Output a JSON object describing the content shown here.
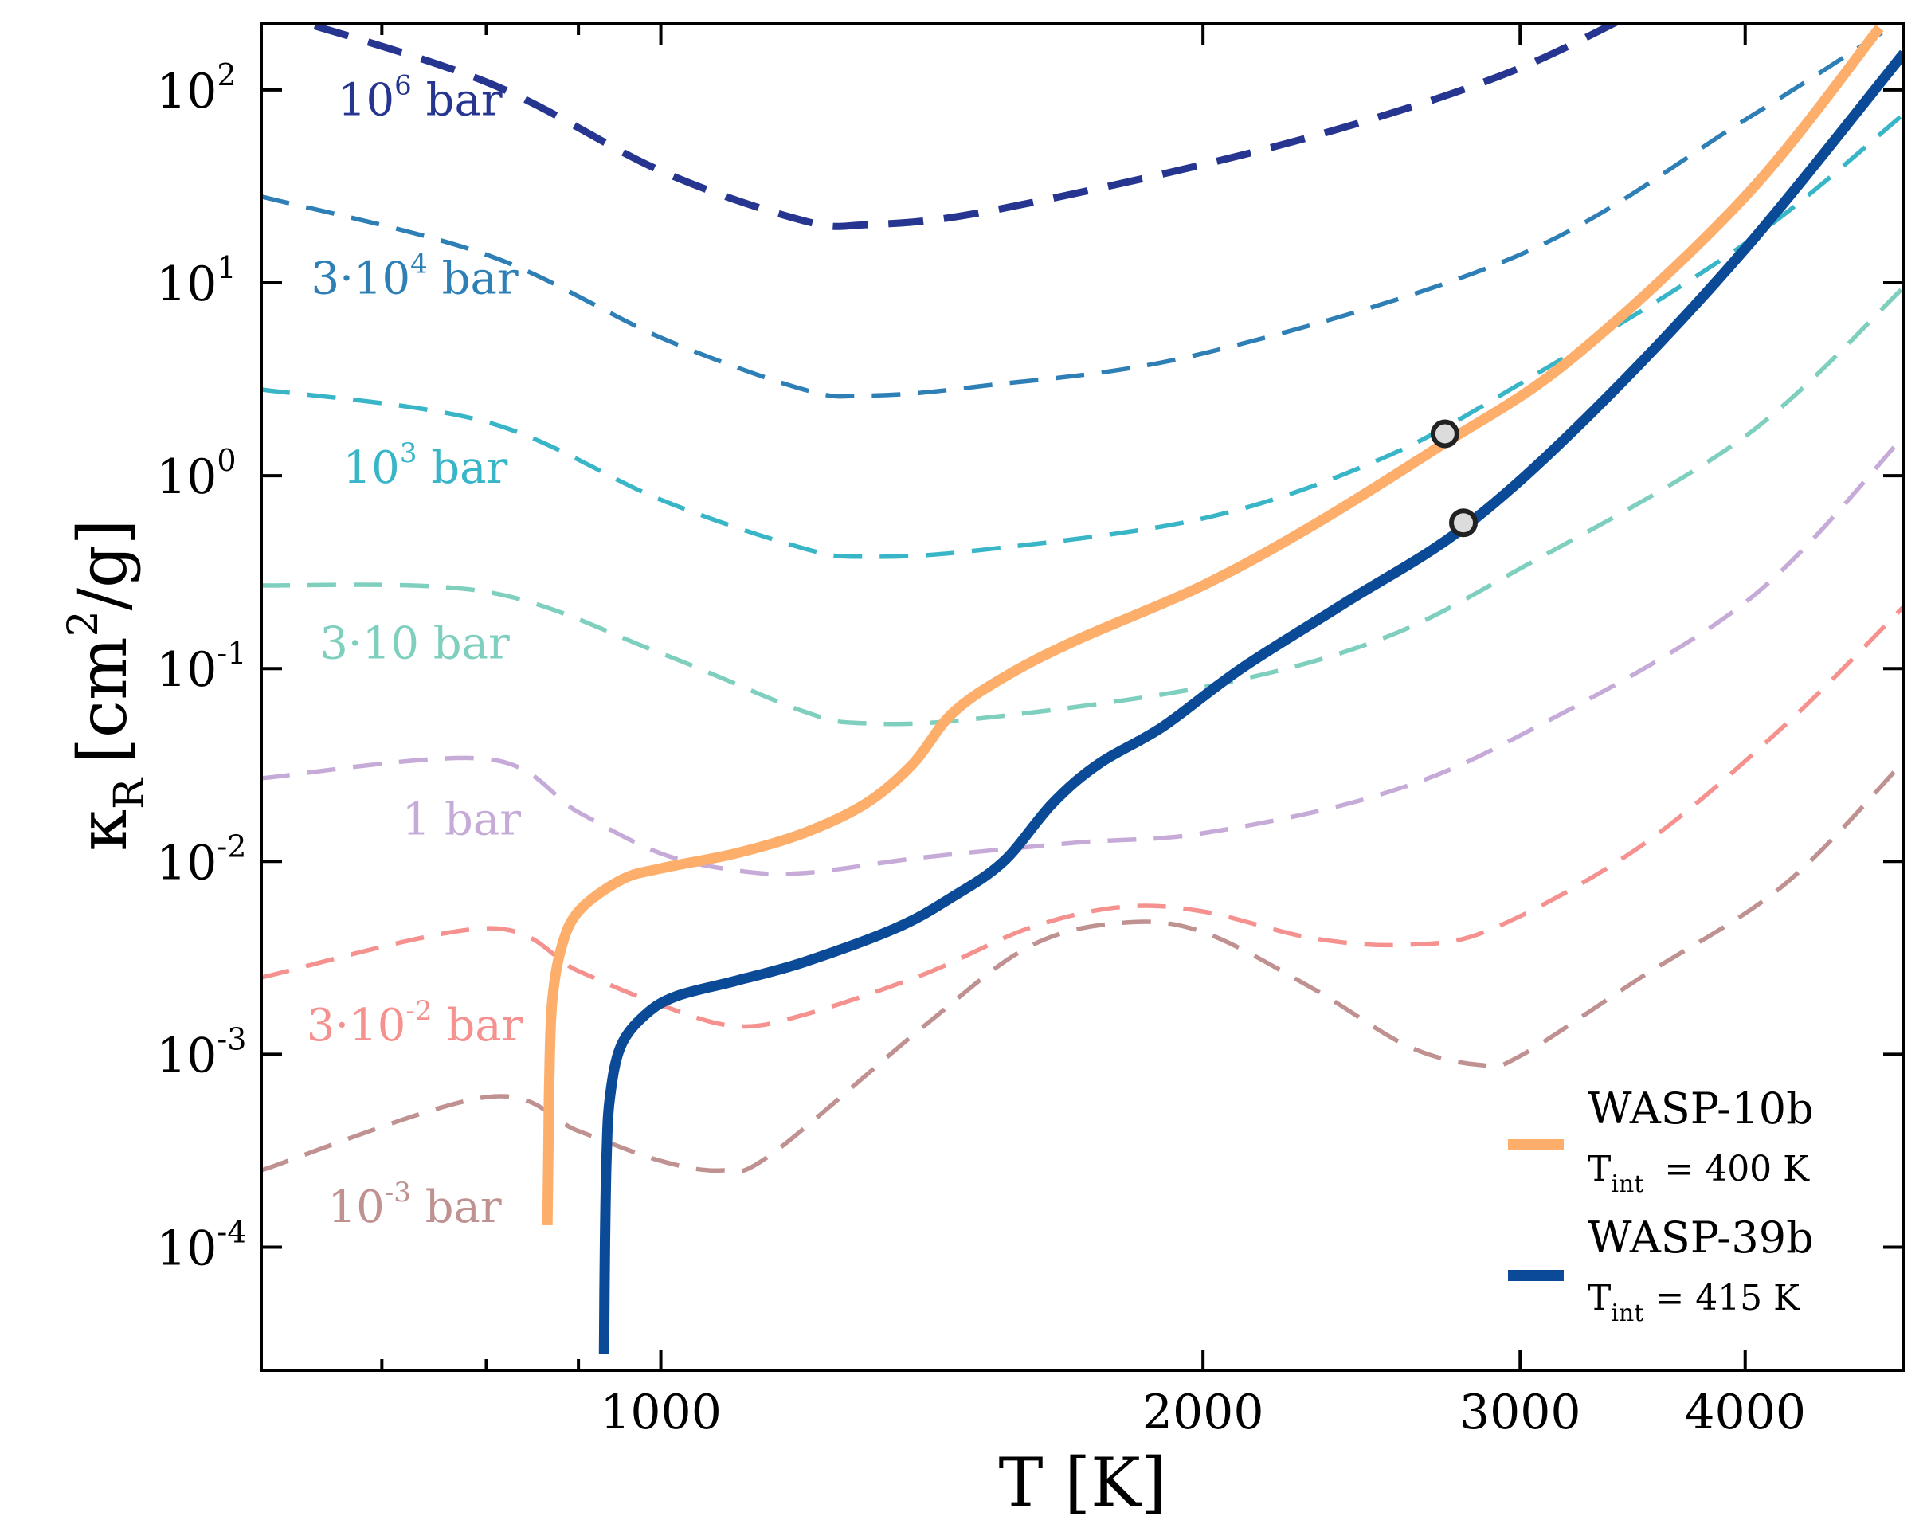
{
  "chart_data": {
    "type": "line",
    "xlabel": "T [K]",
    "ylabel": "κ_R [cm²/g]",
    "ylabel_parts": {
      "symbol": "κ",
      "subscript": "R",
      "unit_prefix": "[cm",
      "unit_exp": "2",
      "unit_suffix": "/g]"
    },
    "xscale": "log",
    "yscale": "log",
    "xlim": [
      600,
      4900
    ],
    "ylim": [
      2.3e-05,
      220
    ],
    "x_major_ticks": [
      1000,
      2000,
      3000,
      4000
    ],
    "x_minor_ticks": [
      700,
      800,
      900
    ],
    "x_tick_labels": [
      "1000",
      "2000",
      "3000",
      "4000"
    ],
    "y_ticks": [
      {
        "value": 0.0001,
        "base": "10",
        "exp": "-4"
      },
      {
        "value": 0.001,
        "base": "10",
        "exp": "-3"
      },
      {
        "value": 0.01,
        "base": "10",
        "exp": "-2"
      },
      {
        "value": 0.1,
        "base": "10",
        "exp": "-1"
      },
      {
        "value": 1,
        "base": "10",
        "exp": "0"
      },
      {
        "value": 10,
        "base": "10",
        "exp": "1"
      },
      {
        "value": 100,
        "base": "10",
        "exp": "2"
      }
    ],
    "isobars": [
      {
        "name": "10^6 bar",
        "color": "#26358f",
        "label": {
          "pre": "10",
          "exp": "6",
          "post": " bar",
          "T": 735,
          "k": 74
        },
        "points": [
          [
            600,
            260
          ],
          [
            800,
            110
          ],
          [
            1000,
            38
          ],
          [
            1200,
            21
          ],
          [
            1300,
            20
          ],
          [
            1500,
            23
          ],
          [
            2000,
            41
          ],
          [
            2500,
            72
          ],
          [
            3000,
            130
          ],
          [
            3500,
            260
          ]
        ]
      },
      {
        "name": "3·10^4 bar",
        "color": "#2e7fb6",
        "label": {
          "pre": "3·10",
          "exp": "4",
          "post": " bar",
          "T": 730,
          "k": 8.8
        },
        "points": [
          [
            600,
            28
          ],
          [
            800,
            14
          ],
          [
            1000,
            5.2
          ],
          [
            1200,
            2.8
          ],
          [
            1300,
            2.6
          ],
          [
            1500,
            2.9
          ],
          [
            2000,
            4.3
          ],
          [
            3000,
            14
          ],
          [
            4000,
            70
          ],
          [
            4900,
            235
          ]
        ]
      },
      {
        "name": "10^3 bar",
        "color": "#39b5c8",
        "label": {
          "pre": "10",
          "exp": "3",
          "post": " bar",
          "T": 740,
          "k": 0.92
        },
        "points": [
          [
            600,
            2.8
          ],
          [
            800,
            1.9
          ],
          [
            1000,
            0.75
          ],
          [
            1200,
            0.42
          ],
          [
            1300,
            0.38
          ],
          [
            1500,
            0.41
          ],
          [
            2000,
            0.6
          ],
          [
            2500,
            1.2
          ],
          [
            3000,
            3
          ],
          [
            4000,
            16
          ],
          [
            4900,
            75
          ]
        ]
      },
      {
        "name": "3·10 bar",
        "color": "#7fcfbf",
        "label": {
          "pre": "3·10",
          "exp": "",
          "post": " bar",
          "T": 730,
          "k": 0.113
        },
        "points": [
          [
            600,
            0.27
          ],
          [
            800,
            0.25
          ],
          [
            1000,
            0.12
          ],
          [
            1200,
            0.06
          ],
          [
            1300,
            0.052
          ],
          [
            1500,
            0.055
          ],
          [
            2000,
            0.08
          ],
          [
            2500,
            0.14
          ],
          [
            3000,
            0.33
          ],
          [
            4000,
            1.6
          ],
          [
            4900,
            9.5
          ]
        ]
      },
      {
        "name": "1 bar",
        "color": "#c6abd8",
        "label": {
          "pre": "1 bar",
          "exp": "",
          "post": "",
          "T": 775,
          "k": 0.0138
        },
        "points": [
          [
            600,
            0.027
          ],
          [
            800,
            0.034
          ],
          [
            900,
            0.018
          ],
          [
            1000,
            0.011
          ],
          [
            1100,
            0.009
          ],
          [
            1200,
            0.0087
          ],
          [
            1400,
            0.0105
          ],
          [
            1700,
            0.0125
          ],
          [
            2000,
            0.014
          ],
          [
            2500,
            0.022
          ],
          [
            3000,
            0.045
          ],
          [
            4000,
            0.22
          ],
          [
            4900,
            1.6
          ]
        ]
      },
      {
        "name": "3·10^-2 bar",
        "color": "#f5928f",
        "label": {
          "pre": "3·10",
          "exp": "-2",
          "post": " bar",
          "T": 730,
          "k": 0.00118
        },
        "points": [
          [
            600,
            0.0025
          ],
          [
            800,
            0.0045
          ],
          [
            900,
            0.0027
          ],
          [
            1000,
            0.0018
          ],
          [
            1100,
            0.0014
          ],
          [
            1200,
            0.0016
          ],
          [
            1400,
            0.0026
          ],
          [
            1600,
            0.0045
          ],
          [
            1800,
            0.0058
          ],
          [
            2000,
            0.0055
          ],
          [
            2300,
            0.004
          ],
          [
            2600,
            0.0037
          ],
          [
            2900,
            0.0045
          ],
          [
            3500,
            0.012
          ],
          [
            4200,
            0.05
          ],
          [
            4900,
            0.21
          ]
        ]
      },
      {
        "name": "10^-3 bar",
        "color": "#c09191",
        "label": {
          "pre": "10",
          "exp": "-3",
          "post": " bar",
          "T": 730,
          "k": 0.000135
        },
        "points": [
          [
            600,
            0.00025
          ],
          [
            800,
            0.0006
          ],
          [
            900,
            0.0004
          ],
          [
            1000,
            0.00028
          ],
          [
            1080,
            0.00025
          ],
          [
            1150,
            0.0003
          ],
          [
            1400,
            0.0014
          ],
          [
            1600,
            0.0036
          ],
          [
            1800,
            0.0048
          ],
          [
            2000,
            0.0043
          ],
          [
            2300,
            0.0022
          ],
          [
            2600,
            0.0011
          ],
          [
            2850,
            0.00088
          ],
          [
            3000,
            0.00098
          ],
          [
            3500,
            0.0025
          ],
          [
            4200,
            0.0075
          ],
          [
            4900,
            0.033
          ]
        ]
      }
    ],
    "profiles": [
      {
        "name": "WASP-10b",
        "color": "#fdae6b",
        "points": [
          [
            865,
            0.00013
          ],
          [
            866,
            0.0003
          ],
          [
            867,
            0.0007
          ],
          [
            870,
            0.0018
          ],
          [
            880,
            0.0035
          ],
          [
            900,
            0.0055
          ],
          [
            950,
            0.008
          ],
          [
            1000,
            0.0092
          ],
          [
            1100,
            0.011
          ],
          [
            1200,
            0.014
          ],
          [
            1300,
            0.02
          ],
          [
            1380,
            0.032
          ],
          [
            1450,
            0.058
          ],
          [
            1550,
            0.09
          ],
          [
            1700,
            0.14
          ],
          [
            2000,
            0.27
          ],
          [
            2300,
            0.55
          ],
          [
            2700,
            1.4
          ],
          [
            3200,
            4
          ],
          [
            4000,
            28
          ],
          [
            4750,
            210
          ]
        ]
      },
      {
        "name": "WASP-39b",
        "color": "#0a4a97",
        "points": [
          [
            930,
            2.8e-05
          ],
          [
            931,
            0.0001
          ],
          [
            933,
            0.0003
          ],
          [
            937,
            0.0006
          ],
          [
            950,
            0.0011
          ],
          [
            980,
            0.0016
          ],
          [
            1020,
            0.002
          ],
          [
            1100,
            0.0024
          ],
          [
            1200,
            0.003
          ],
          [
            1350,
            0.0045
          ],
          [
            1450,
            0.0065
          ],
          [
            1550,
            0.01
          ],
          [
            1650,
            0.02
          ],
          [
            1750,
            0.032
          ],
          [
            1900,
            0.05
          ],
          [
            2100,
            0.1
          ],
          [
            2400,
            0.22
          ],
          [
            2800,
            0.55
          ],
          [
            3300,
            2.2
          ],
          [
            4000,
            15
          ],
          [
            4900,
            155
          ]
        ]
      }
    ],
    "markers": [
      {
        "series": "WASP-10b",
        "T": 2725,
        "k": 1.65
      },
      {
        "series": "WASP-39b",
        "T": 2790,
        "k": 0.57
      }
    ],
    "legend": {
      "position": "bottom-right",
      "entries": [
        {
          "title": "WASP-10b",
          "sub_symbol": "T",
          "sub_index": "int",
          "sub_value": "= 400 K",
          "color": "#fdae6b"
        },
        {
          "title": "WASP-39b",
          "sub_symbol": "T",
          "sub_index": "int",
          "sub_value": "= 415 K",
          "color": "#0a4a97"
        }
      ]
    }
  }
}
